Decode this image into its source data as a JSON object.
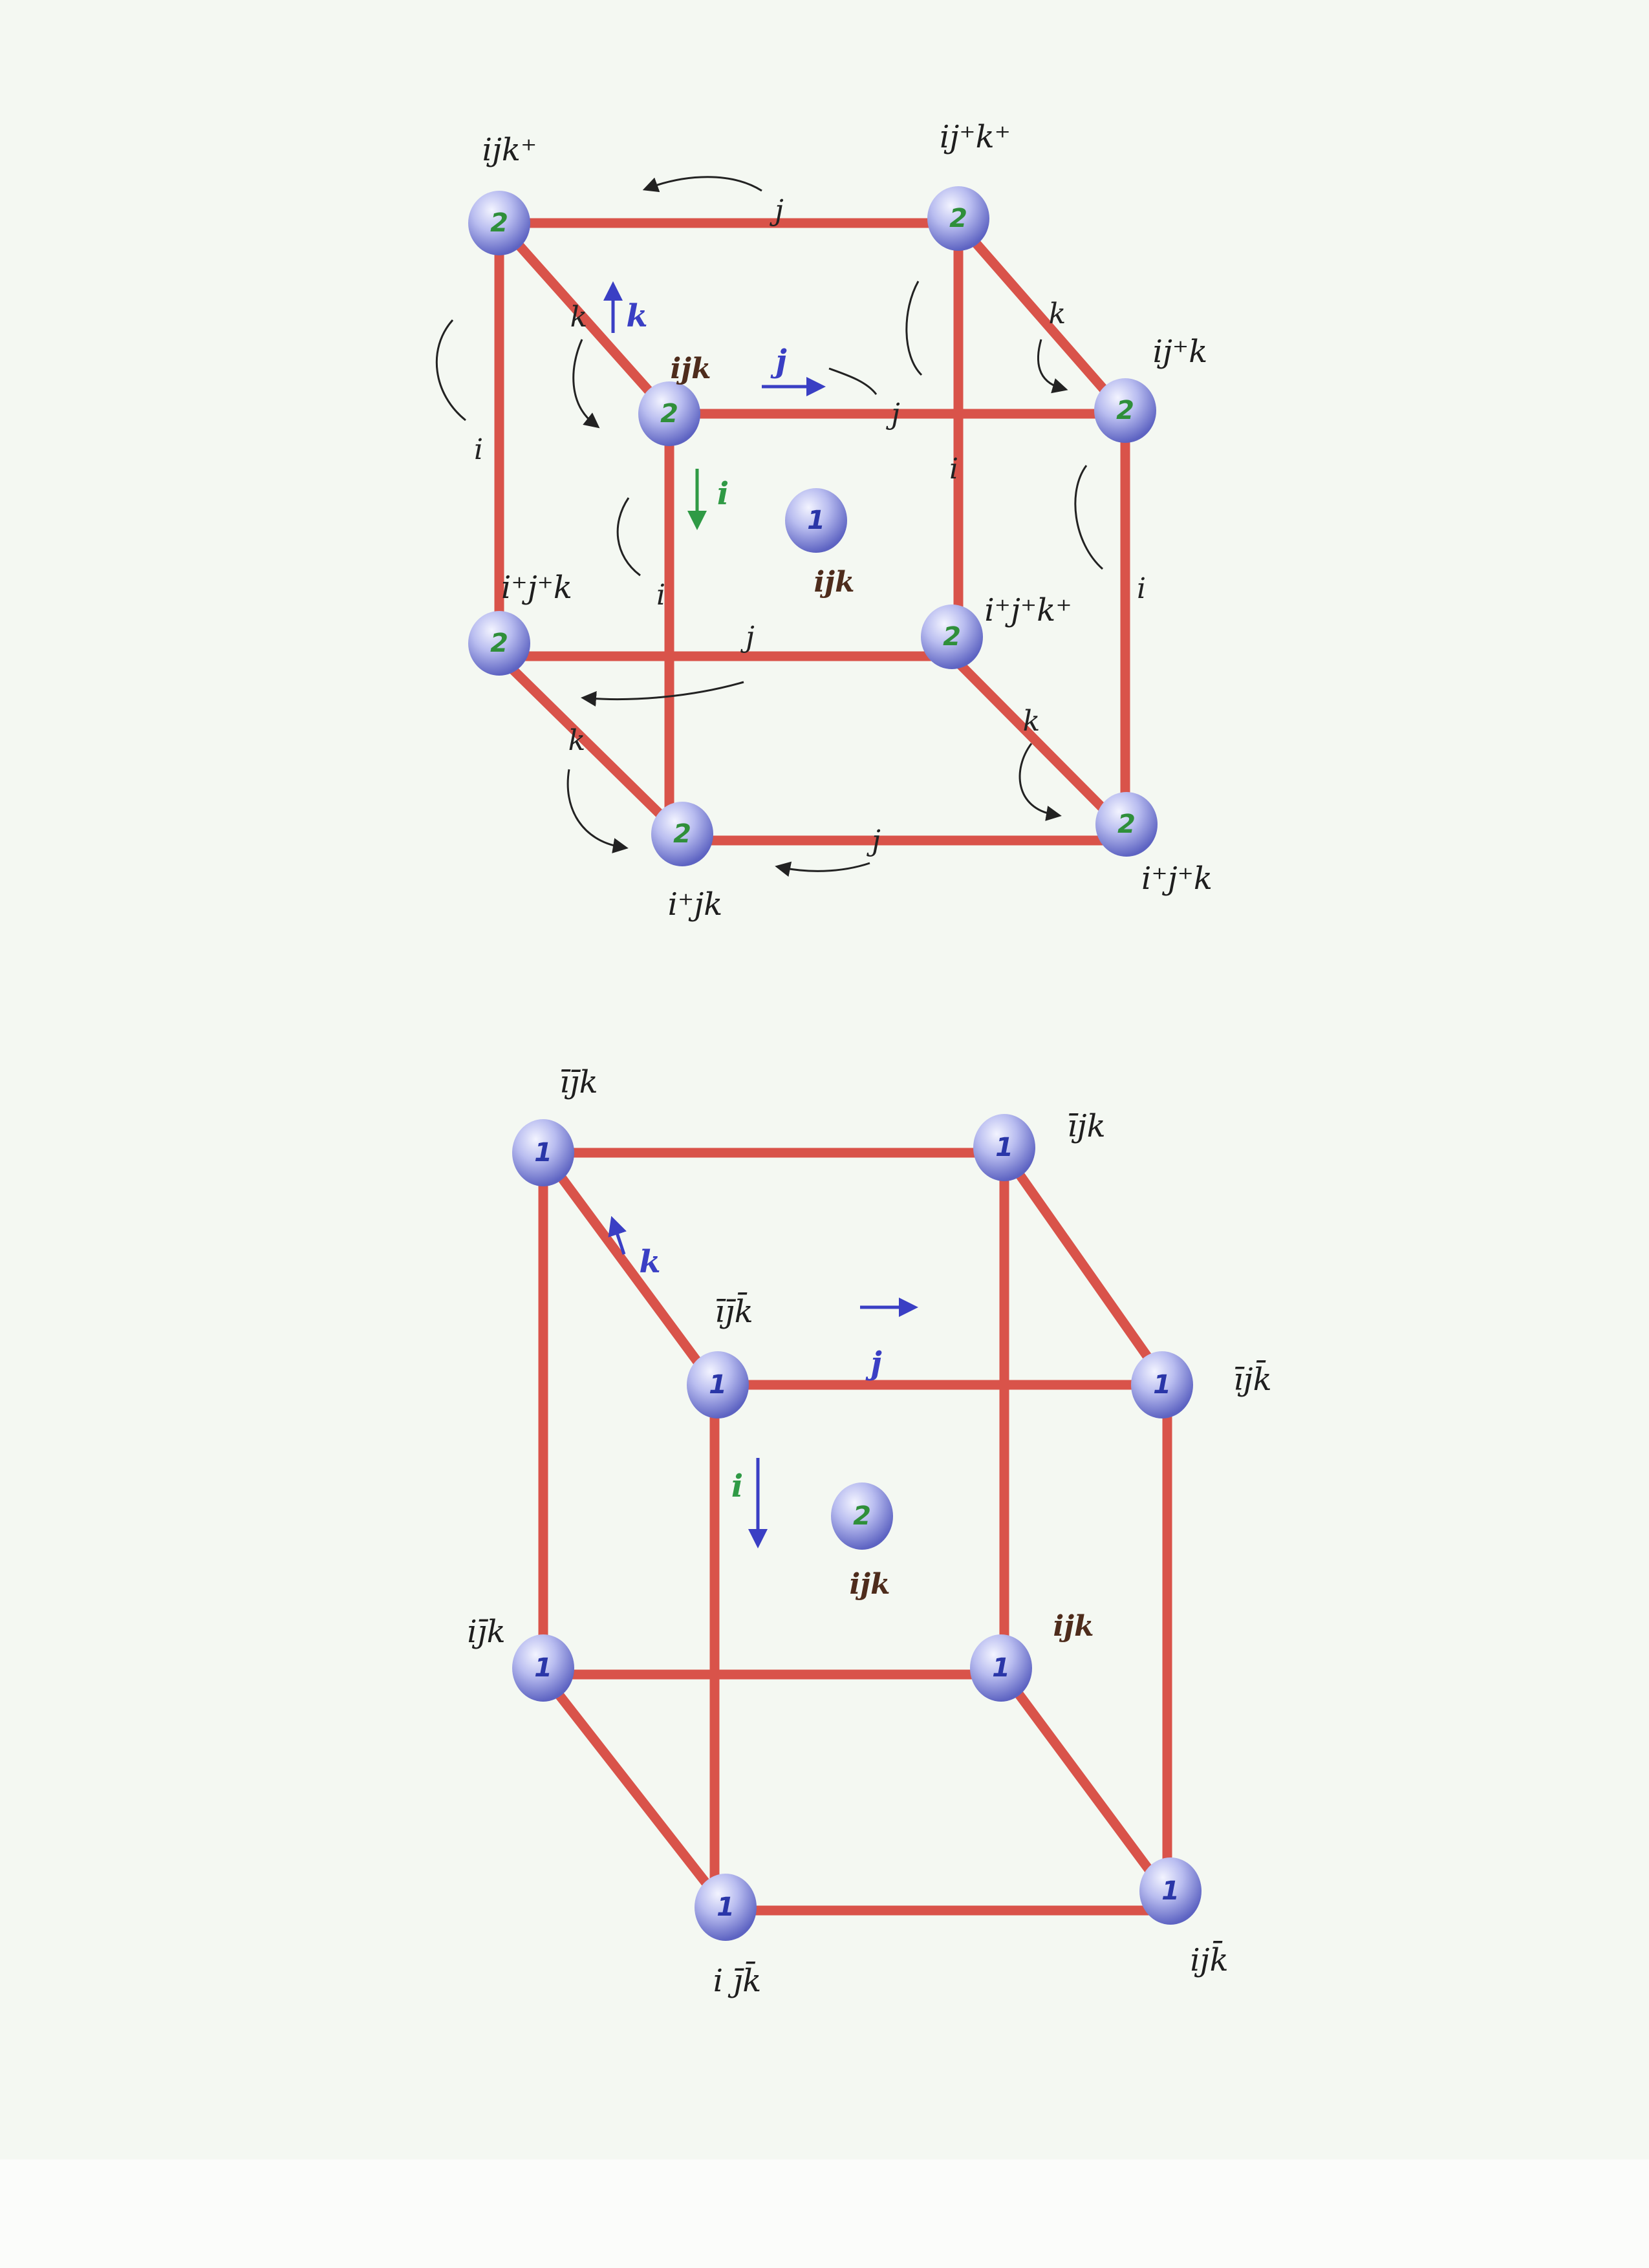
{
  "colors": {
    "edge": "#d9534a",
    "node_light": "#e8ebff",
    "node_dark": "#5d63c2",
    "number_green": "#2f8f3a",
    "number_blue": "#2a36a8",
    "axis_blue": "#3a3fc4",
    "axis_green": "#2f9a45"
  },
  "top": {
    "nodes": {
      "back_top_left": {
        "num": "2",
        "label": "ijk⁺"
      },
      "back_top_right": {
        "num": "2",
        "label": "ij⁺k⁺"
      },
      "front_top_right": {
        "num": "2",
        "label": "ij⁺k"
      },
      "front_top_left": {
        "num": "2",
        "label": "ijk"
      },
      "back_bottom_left": {
        "num": "2",
        "label": "i⁺j⁺k"
      },
      "back_bottom_right": {
        "num": "2",
        "label": "i⁺j⁺k⁺"
      },
      "front_bottom_left": {
        "num": "2",
        "label": "i⁺jk"
      },
      "front_bottom_right": {
        "num": "2",
        "label": "i⁺j⁺k"
      },
      "center": {
        "num": "1",
        "label": "ijk"
      }
    },
    "axes": {
      "k": "k",
      "j": "j",
      "i": "i"
    },
    "edge_letters": {
      "j": "j",
      "k": "k",
      "i": "i"
    }
  },
  "bottom": {
    "nodes": {
      "back_top_left": {
        "num": "1",
        "label": "īj̄k"
      },
      "back_top_right": {
        "num": "1",
        "label": "ījk"
      },
      "front_top_left": {
        "num": "1",
        "label": "īj̄k̄"
      },
      "front_top_right": {
        "num": "1",
        "label": "ījk̄"
      },
      "back_bottom_left": {
        "num": "1",
        "label": "ij̄k"
      },
      "back_bottom_right": {
        "num": "1",
        "label": "ijk"
      },
      "front_bottom_left": {
        "num": "1",
        "label": "i j̄k̄"
      },
      "front_bottom_right": {
        "num": "1",
        "label": "ijk̄"
      },
      "center": {
        "num": "2",
        "label": "ijk"
      }
    },
    "axes": {
      "k": "k",
      "j": "j",
      "i": "i"
    }
  }
}
